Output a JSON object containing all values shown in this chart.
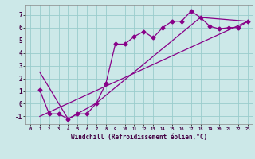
{
  "xlabel": "Windchill (Refroidissement éolien,°C)",
  "bg_color": "#cce8e8",
  "line_color": "#880088",
  "grid_color": "#99cccc",
  "xlim": [
    -0.5,
    23.5
  ],
  "ylim": [
    -1.6,
    7.8
  ],
  "xticks": [
    0,
    1,
    2,
    3,
    4,
    5,
    6,
    7,
    8,
    9,
    10,
    11,
    12,
    13,
    14,
    15,
    16,
    17,
    18,
    19,
    20,
    21,
    22,
    23
  ],
  "yticks": [
    -1,
    0,
    1,
    2,
    3,
    4,
    5,
    6,
    7
  ],
  "line1_x": [
    1,
    2,
    3,
    4,
    5,
    6,
    7,
    8,
    9,
    10,
    11,
    12,
    13,
    14,
    15,
    16,
    17,
    18,
    19,
    20,
    21,
    22,
    23
  ],
  "line1_y": [
    1.1,
    -0.8,
    -0.8,
    -1.2,
    -0.8,
    -0.8,
    0.05,
    1.6,
    4.7,
    4.7,
    5.3,
    5.7,
    5.2,
    6.0,
    6.5,
    6.5,
    7.3,
    6.8,
    6.1,
    5.9,
    6.0,
    6.0,
    6.5
  ],
  "line2_x": [
    1,
    4,
    7,
    18,
    23
  ],
  "line2_y": [
    2.5,
    -1.2,
    0.05,
    6.8,
    6.5
  ],
  "line3_x": [
    1,
    23
  ],
  "line3_y": [
    -1.0,
    6.5
  ],
  "marker_size": 2.5,
  "linewidth": 0.9
}
